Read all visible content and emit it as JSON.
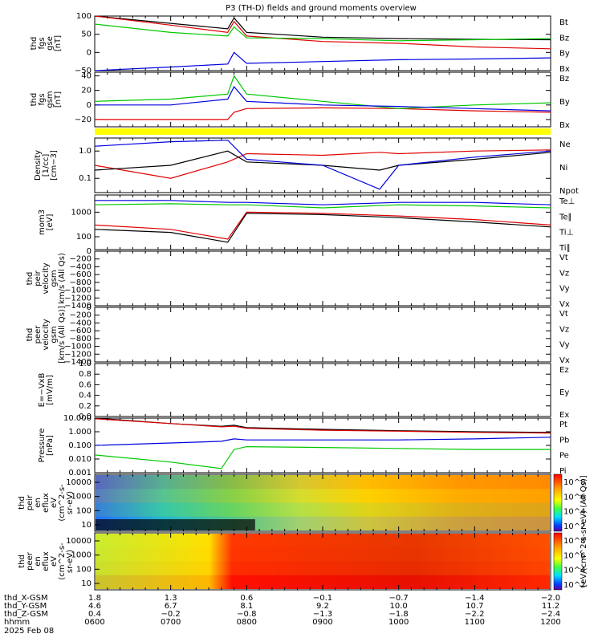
{
  "title": "P3 (TH-D) fields and ground moments overview",
  "colors": {
    "black": "#000000",
    "red": "#e00000",
    "green": "#00c800",
    "blue": "#0000e0",
    "yellow": "#ffff00"
  },
  "chart_data": [
    {
      "type": "line",
      "panel": "fgs_gse",
      "ylabel": [
        "thd",
        "fgs",
        "gse",
        "[nT]"
      ],
      "ylim": [
        -50,
        100
      ],
      "yticks": [
        "100",
        "50",
        "0",
        "−50"
      ],
      "x": [
        "06:00",
        "07:00",
        "07:45",
        "07:50",
        "08:00",
        "09:00",
        "10:00",
        "11:00",
        "12:00"
      ],
      "series": [
        {
          "name": "Bt",
          "color": "black",
          "values": [
            100,
            80,
            65,
            95,
            55,
            42,
            38,
            36,
            35
          ]
        },
        {
          "name": "Bz",
          "color": "red",
          "values": [
            100,
            75,
            55,
            85,
            45,
            30,
            25,
            15,
            10
          ]
        },
        {
          "name": "By",
          "color": "green",
          "values": [
            78,
            55,
            45,
            70,
            40,
            38,
            32,
            35,
            38
          ]
        },
        {
          "name": "Bx",
          "color": "blue",
          "values": [
            -55,
            -40,
            -32,
            0,
            -30,
            -25,
            -20,
            -18,
            -15
          ]
        }
      ]
    },
    {
      "type": "line",
      "panel": "fgs_gsm",
      "ylabel": [
        "thd",
        "fgs",
        "gsm",
        "[nT]"
      ],
      "ylim": [
        -30,
        45
      ],
      "yticks": [
        "40",
        "20",
        "0",
        "−20"
      ],
      "x": [
        "06:00",
        "07:00",
        "07:45",
        "07:50",
        "08:00",
        "09:00",
        "10:00",
        "11:00",
        "12:00"
      ],
      "series": [
        {
          "name": "Bz",
          "color": "red",
          "values": [
            -20,
            -20,
            -20,
            -10,
            -5,
            -4,
            -5,
            -8,
            -10
          ]
        },
        {
          "name": "By",
          "color": "green",
          "values": [
            5,
            8,
            15,
            40,
            15,
            5,
            -5,
            0,
            3
          ]
        },
        {
          "name": "Bx",
          "color": "blue",
          "values": [
            0,
            0,
            8,
            25,
            5,
            0,
            -2,
            -5,
            -8
          ]
        }
      ]
    },
    {
      "type": "line",
      "panel": "density",
      "ylabel": [
        "Density",
        "[1/cc]",
        "[cm−3]"
      ],
      "ylim": [
        0.03,
        3
      ],
      "log": true,
      "yticks": [
        "1.0",
        "0.1"
      ],
      "x": [
        "06:00",
        "07:00",
        "07:45",
        "08:00",
        "09:00",
        "09:45",
        "10:00",
        "11:00",
        "12:00"
      ],
      "series": [
        {
          "name": "Ne",
          "color": "red",
          "values": [
            0.3,
            0.1,
            0.4,
            0.8,
            0.7,
            0.9,
            0.8,
            1.0,
            1.1
          ]
        },
        {
          "name": "Ni",
          "color": "black",
          "values": [
            0.2,
            0.3,
            1.0,
            0.4,
            0.3,
            0.2,
            0.3,
            0.5,
            0.9
          ]
        },
        {
          "name": "Npot",
          "color": "blue",
          "values": [
            1.5,
            2.2,
            2.5,
            0.5,
            0.3,
            0.04,
            0.3,
            0.6,
            1.0
          ]
        }
      ]
    },
    {
      "type": "line",
      "panel": "moments",
      "ylabel": [
        "mom3",
        "[eV]"
      ],
      "ylim": [
        30,
        5000
      ],
      "log": true,
      "yticks": [
        "1000",
        "100"
      ],
      "x": [
        "06:00",
        "07:00",
        "07:45",
        "08:00",
        "09:00",
        "10:00",
        "11:00",
        "12:00"
      ],
      "series": [
        {
          "name": "Te⊥",
          "color": "red",
          "values": [
            300,
            200,
            80,
            1000,
            900,
            700,
            500,
            300
          ]
        },
        {
          "name": "Te∥",
          "color": "black",
          "values": [
            200,
            150,
            60,
            900,
            800,
            600,
            400,
            250
          ]
        },
        {
          "name": "Ti⊥",
          "color": "blue",
          "values": [
            3000,
            3000,
            2500,
            2500,
            2000,
            2500,
            2500,
            2000
          ]
        },
        {
          "name": "Ti∥",
          "color": "green",
          "values": [
            2000,
            2200,
            2000,
            2000,
            1500,
            2000,
            1800,
            1500
          ]
        }
      ]
    },
    {
      "type": "line",
      "panel": "peir_velocity",
      "ylabel": [
        "thd",
        "peir",
        "velocity",
        "gsm",
        "km/s (All Qs)"
      ],
      "ylim": [
        -1400,
        0
      ],
      "yticks": [
        "0",
        "−200",
        "−400",
        "−600",
        "−800",
        "−1000",
        "−1200",
        "−1400"
      ],
      "series": [
        {
          "name": "Vt",
          "color": "black",
          "values": []
        },
        {
          "name": "Vz",
          "color": "red",
          "values": []
        },
        {
          "name": "Vy",
          "color": "green",
          "values": []
        },
        {
          "name": "Vx",
          "color": "blue",
          "values": []
        }
      ]
    },
    {
      "type": "line",
      "panel": "peer_velocity",
      "ylabel": [
        "thd",
        "peer",
        "velocity",
        "gsm",
        "[km/s (All Qs)]"
      ],
      "ylim": [
        -1400,
        0
      ],
      "yticks": [
        "0",
        "−200",
        "−400",
        "−600",
        "−800",
        "−1000",
        "−1200",
        "−1400"
      ],
      "series": [
        {
          "name": "Vt",
          "color": "black",
          "values": []
        },
        {
          "name": "Vz",
          "color": "red",
          "values": []
        },
        {
          "name": "Vy",
          "color": "green",
          "values": []
        },
        {
          "name": "Vx",
          "color": "blue",
          "values": []
        }
      ]
    },
    {
      "type": "line",
      "panel": "efield",
      "ylabel": [
        "E=−VxB",
        "[mV/m]"
      ],
      "ylim": [
        0,
        1
      ],
      "yticks": [
        "1.0",
        "0.8",
        "0.6",
        "0.4",
        "0.2",
        "0.0"
      ],
      "series": [
        {
          "name": "Ez",
          "color": "red",
          "values": []
        },
        {
          "name": "Ey",
          "color": "green",
          "values": []
        },
        {
          "name": "Ex",
          "color": "blue",
          "values": []
        }
      ]
    },
    {
      "type": "line",
      "panel": "pressure",
      "ylabel": [
        "Pressure",
        "[nPa]"
      ],
      "ylim": [
        0.001,
        10
      ],
      "log": true,
      "yticks": [
        "10.000",
        "1.000",
        "0.100",
        "0.010",
        "0.001"
      ],
      "x": [
        "06:00",
        "07:00",
        "07:40",
        "07:50",
        "08:00",
        "09:00",
        "10:00",
        "11:00",
        "12:00"
      ],
      "series": [
        {
          "name": "Pt",
          "color": "black",
          "values": [
            10,
            4,
            2.5,
            3,
            2,
            1.5,
            1.2,
            1.0,
            0.9
          ]
        },
        {
          "name": "Pb",
          "color": "red",
          "values": [
            9,
            4,
            2.3,
            2.5,
            1.8,
            1.3,
            1.1,
            0.9,
            0.8
          ]
        },
        {
          "name": "Pe",
          "color": "green",
          "values": [
            0.02,
            0.006,
            0.002,
            0.05,
            0.08,
            0.07,
            0.06,
            0.05,
            0.05
          ]
        },
        {
          "name": "Pi",
          "color": "blue",
          "values": [
            0.1,
            0.15,
            0.2,
            0.3,
            0.25,
            0.25,
            0.25,
            0.3,
            0.4
          ]
        }
      ]
    },
    {
      "type": "heatmap",
      "panel": "peir_spectrogram",
      "ylabel": [
        "thd",
        "peir",
        "en",
        "eflux",
        "eV",
        "(cm^2-s-",
        "sr-eV)"
      ],
      "yticks": [
        "10000",
        "1000",
        "100",
        "10"
      ],
      "colorbar_label": "[eV/(cm^2-s-sr-eV) (All Qs)]",
      "colorbar_ticks": [
        "10^8",
        "10^6",
        "10^4",
        "10^2"
      ]
    },
    {
      "type": "heatmap",
      "panel": "peer_spectrogram",
      "ylabel": [
        "thd",
        "peer",
        "en",
        "eflux",
        "eV",
        "(cm^2-s-",
        "sr-eV)"
      ],
      "yticks": [
        "10000",
        "1000",
        "100",
        "10"
      ],
      "colorbar_label": "[eV/(cm^2-s-sr-eV) (All Qs)]",
      "colorbar_ticks": [
        "10^8",
        "10^6",
        "10^4",
        "10^2"
      ]
    }
  ],
  "xaxis": {
    "rows": [
      {
        "label": "thd_X-GSM",
        "values": [
          "1.8",
          "1.3",
          "0.6",
          "−0.1",
          "−0.7",
          "−1.4",
          "−2.0"
        ]
      },
      {
        "label": "thd_Y-GSM",
        "values": [
          "4.6",
          "6.7",
          "8.1",
          "9.2",
          "10.0",
          "10.7",
          "11.2"
        ]
      },
      {
        "label": "thd_Z-GSM",
        "values": [
          "0.4",
          "−0.2",
          "−0.8",
          "−1.3",
          "−1.8",
          "−2.2",
          "−2.4"
        ]
      },
      {
        "label": "hhmm",
        "values": [
          "0600",
          "0700",
          "0800",
          "0900",
          "1000",
          "1100",
          "1200"
        ]
      }
    ],
    "date": "2025 Feb 08"
  }
}
